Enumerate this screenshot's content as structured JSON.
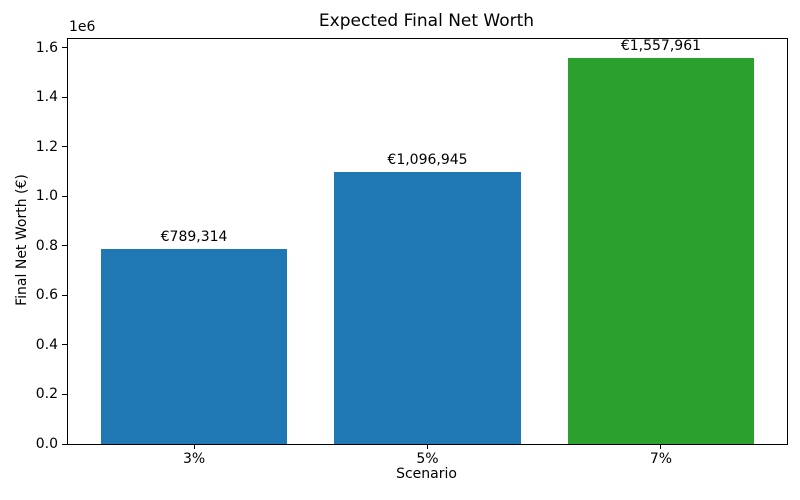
{
  "chart_data": {
    "type": "bar",
    "title": "Expected Final Net Worth",
    "xlabel": "Scenario",
    "ylabel": "Final Net Worth (€)",
    "categories": [
      "3%",
      "5%",
      "7%"
    ],
    "values": [
      789314,
      1096945,
      1557961
    ],
    "bar_labels": [
      "€789,314",
      "€1,096,945",
      "€1,557,961"
    ],
    "bar_colors": [
      "#1f77b4",
      "#1f77b4",
      "#2ca02c"
    ],
    "ylim": [
      0,
      1635859
    ],
    "yticks": [
      0,
      200000,
      400000,
      600000,
      800000,
      1000000,
      1200000,
      1400000,
      1600000
    ],
    "ytick_labels": [
      "0.0",
      "0.2",
      "0.4",
      "0.6",
      "0.8",
      "1.0",
      "1.2",
      "1.4",
      "1.6"
    ],
    "y_offset_text": "1e6",
    "grid": false,
    "legend": null,
    "bar_width_fraction": 0.8,
    "x_margin_units": 0.54
  }
}
